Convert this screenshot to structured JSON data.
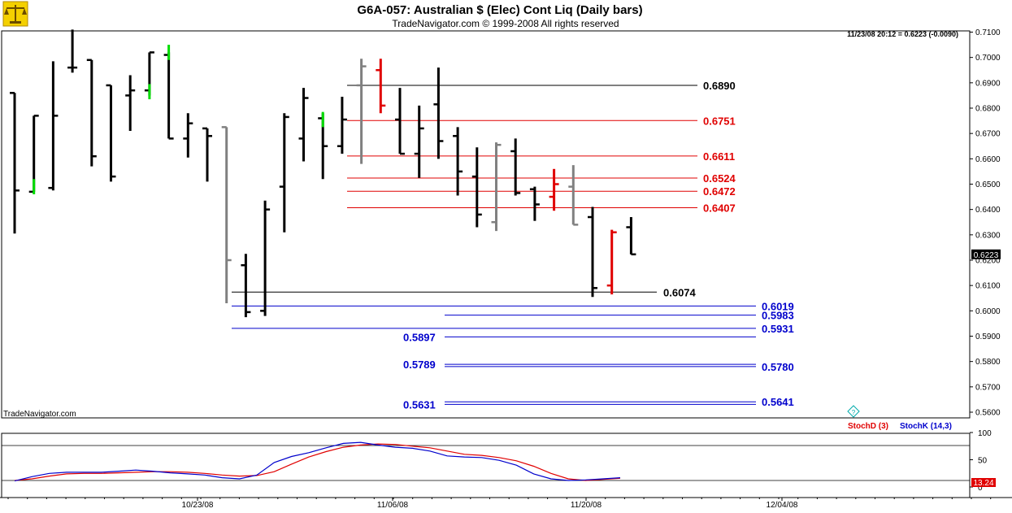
{
  "header": {
    "title": "G6A-057:  Australian $ (Elec) Cont Liq  (Daily bars)",
    "subtitle": "TradeNavigator.com © 1999-2008 All rights reserved",
    "readout": "11/23/08 20:12 = 0.6223 (-0.0090)",
    "watermark": "TradeNavigator.com",
    "current_price_label": "0.6223",
    "logo": "scales-icon"
  },
  "chart_data": [
    {
      "type": "ohlc-bar",
      "ylim": [
        0.555,
        0.7115
      ],
      "y_ticks": [
        "0.5600",
        "0.5700",
        "0.5800",
        "0.5900",
        "0.6000",
        "0.6100",
        "0.6200",
        "0.6300",
        "0.6400",
        "0.6500",
        "0.6600",
        "0.6700",
        "0.6800",
        "0.6900",
        "0.7000",
        "0.7100"
      ],
      "x_ticks": [
        "10/23/08",
        "11/06/08",
        "11/20/08",
        "12/04/08"
      ],
      "bars": [
        {
          "h": 0.686,
          "l": 0.6305,
          "o": 0.686,
          "c": 0.6475,
          "color": "black"
        },
        {
          "h": 0.677,
          "l": 0.647,
          "o": 0.647,
          "c": 0.677,
          "color": "black"
        },
        {
          "h": 0.6985,
          "l": 0.6475,
          "o": 0.6485,
          "c": 0.677,
          "color": "black"
        },
        {
          "h": 0.711,
          "l": 0.694,
          "o": 0.696,
          "c": 0.696,
          "color": "black"
        },
        {
          "h": 0.699,
          "l": 0.657,
          "o": 0.699,
          "c": 0.661,
          "color": "black"
        },
        {
          "h": 0.689,
          "l": 0.651,
          "o": 0.689,
          "c": 0.653,
          "color": "black"
        },
        {
          "h": 0.693,
          "l": 0.671,
          "o": 0.685,
          "c": 0.687,
          "color": "black"
        },
        {
          "h": 0.702,
          "l": 0.685,
          "o": 0.687,
          "c": 0.702,
          "color": "black"
        },
        {
          "h": 0.702,
          "l": 0.668,
          "o": 0.701,
          "c": 0.668,
          "color": "black"
        },
        {
          "h": 0.678,
          "l": 0.6605,
          "o": 0.668,
          "c": 0.674,
          "color": "black"
        },
        {
          "h": 0.672,
          "l": 0.651,
          "o": 0.672,
          "c": 0.669,
          "color": "black"
        },
        {
          "h": 0.6725,
          "l": 0.603,
          "o": 0.6725,
          "c": 0.62,
          "color": "gray"
        },
        {
          "h": 0.6225,
          "l": 0.5975,
          "o": 0.618,
          "c": 0.5995,
          "color": "black"
        },
        {
          "h": 0.6435,
          "l": 0.598,
          "o": 0.6,
          "c": 0.64,
          "color": "black"
        },
        {
          "h": 0.678,
          "l": 0.631,
          "o": 0.649,
          "c": 0.6765,
          "color": "black"
        },
        {
          "h": 0.688,
          "l": 0.659,
          "o": 0.668,
          "c": 0.684,
          "color": "black"
        },
        {
          "h": 0.678,
          "l": 0.652,
          "o": 0.676,
          "c": 0.665,
          "color": "black"
        },
        {
          "h": 0.6845,
          "l": 0.662,
          "o": 0.665,
          "c": 0.6755,
          "color": "black"
        },
        {
          "h": 0.6995,
          "l": 0.658,
          "o": 0.689,
          "c": 0.6965,
          "color": "gray"
        },
        {
          "h": 0.6995,
          "l": 0.678,
          "o": 0.695,
          "c": 0.681,
          "color": "red"
        },
        {
          "h": 0.688,
          "l": 0.662,
          "o": 0.6755,
          "c": 0.662,
          "color": "black"
        },
        {
          "h": 0.681,
          "l": 0.6525,
          "o": 0.662,
          "c": 0.672,
          "color": "black"
        },
        {
          "h": 0.696,
          "l": 0.66,
          "o": 0.6815,
          "c": 0.667,
          "color": "black"
        },
        {
          "h": 0.6725,
          "l": 0.6455,
          "o": 0.669,
          "c": 0.655,
          "color": "black"
        },
        {
          "h": 0.6645,
          "l": 0.633,
          "o": 0.653,
          "c": 0.638,
          "color": "black"
        },
        {
          "h": 0.6665,
          "l": 0.6315,
          "o": 0.635,
          "c": 0.6655,
          "color": "gray"
        },
        {
          "h": 0.668,
          "l": 0.6455,
          "o": 0.663,
          "c": 0.6465,
          "color": "black"
        },
        {
          "h": 0.649,
          "l": 0.6355,
          "o": 0.648,
          "c": 0.642,
          "color": "black"
        },
        {
          "h": 0.656,
          "l": 0.6395,
          "o": 0.645,
          "c": 0.65,
          "color": "red"
        },
        {
          "h": 0.6575,
          "l": 0.634,
          "o": 0.649,
          "c": 0.634,
          "color": "gray"
        },
        {
          "h": 0.641,
          "l": 0.6055,
          "o": 0.637,
          "c": 0.609,
          "color": "black"
        },
        {
          "h": 0.632,
          "l": 0.6065,
          "o": 0.61,
          "c": 0.631,
          "color": "red"
        },
        {
          "h": 0.637,
          "l": 0.6223,
          "o": 0.633,
          "c": 0.6223,
          "color": "black"
        }
      ],
      "levels": [
        {
          "value": 0.689,
          "label": "0.6890",
          "color": "black",
          "side": "above"
        },
        {
          "value": 0.6751,
          "label": "0.6751",
          "color": "red",
          "side": "above"
        },
        {
          "value": 0.6611,
          "label": "0.6611",
          "color": "red",
          "side": "above"
        },
        {
          "value": 0.6524,
          "label": "0.6524",
          "color": "red",
          "side": "above"
        },
        {
          "value": 0.6472,
          "label": "0.6472",
          "color": "red",
          "side": "above"
        },
        {
          "value": 0.6407,
          "label": "0.6407",
          "color": "red",
          "side": "above"
        },
        {
          "value": 0.6074,
          "label": "0.6074",
          "color": "black",
          "side": "below"
        },
        {
          "value": 0.6019,
          "label": "0.6019",
          "color": "blue",
          "side": "below"
        },
        {
          "value": 0.5983,
          "label": "0.5983",
          "color": "blue",
          "side": "below"
        },
        {
          "value": 0.5931,
          "label": "0.5931",
          "color": "blue",
          "side": "below"
        },
        {
          "value": 0.5897,
          "label": "0.5897",
          "color": "blue",
          "side": "below"
        },
        {
          "value": 0.5789,
          "label": "0.5789",
          "color": "blue",
          "side": "below"
        },
        {
          "value": 0.578,
          "label": "0.5780",
          "color": "blue",
          "side": "below"
        },
        {
          "value": 0.5641,
          "label": "0.5641",
          "color": "blue",
          "side": "below"
        },
        {
          "value": 0.5631,
          "label": "0.5631",
          "color": "blue",
          "side": "below"
        }
      ],
      "colors": {
        "black": "#000000",
        "gray": "#808080",
        "red": "#e00000",
        "green": "#00dd00",
        "blue": "#0000cc"
      }
    },
    {
      "type": "line",
      "ylim": [
        0,
        100
      ],
      "y_ticks": [
        "100",
        "50",
        "0"
      ],
      "current_value_label": "13.24",
      "legend": [
        {
          "name": "StochD (3)",
          "color": "#e00000"
        },
        {
          "name": "StochK (14,3)",
          "color": "#0000cc"
        }
      ],
      "series": [
        {
          "name": "StochD (3)",
          "color": "#e00000",
          "values": [
            12,
            15,
            20,
            24,
            25,
            25,
            26,
            27,
            28,
            28,
            27,
            25,
            22,
            20,
            21,
            28,
            42,
            55,
            65,
            73,
            77,
            79,
            78,
            75,
            72,
            66,
            60,
            58,
            54,
            48,
            38,
            25,
            15,
            12,
            14,
            16
          ]
        },
        {
          "name": "StochK (14,3)",
          "color": "#0000cc",
          "values": [
            11,
            19,
            25,
            27,
            27,
            27,
            29,
            31,
            29,
            26,
            24,
            22,
            17,
            15,
            22,
            45,
            56,
            63,
            72,
            80,
            82,
            77,
            73,
            71,
            66,
            57,
            55,
            54,
            49,
            40,
            24,
            15,
            12,
            13,
            15,
            17
          ]
        }
      ]
    }
  ]
}
